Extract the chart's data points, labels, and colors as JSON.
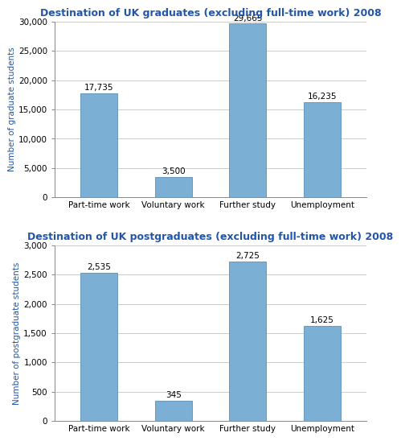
{
  "chart1": {
    "title": "Destination of UK graduates (excluding full-time work) 2008",
    "categories": [
      "Part-time work",
      "Voluntary work",
      "Further study",
      "Unemployment"
    ],
    "values": [
      17735,
      3500,
      29665,
      16235
    ],
    "labels": [
      "17,735",
      "3,500",
      "29,665",
      "16,235"
    ],
    "ylabel": "Number of graduate students",
    "ylim": [
      0,
      30000
    ],
    "yticks": [
      0,
      5000,
      10000,
      15000,
      20000,
      25000,
      30000
    ],
    "yticklabels": [
      "0",
      "5,000",
      "10,000",
      "15,000",
      "20,000",
      "25,000",
      "30,000"
    ]
  },
  "chart2": {
    "title": "Destination of UK postgraduates (excluding full-time work) 2008",
    "categories": [
      "Part-time work",
      "Voluntary work",
      "Further study",
      "Unemployment"
    ],
    "values": [
      2535,
      345,
      2725,
      1625
    ],
    "labels": [
      "2,535",
      "345",
      "2,725",
      "1,625"
    ],
    "ylabel": "Number of postgraduate students",
    "ylim": [
      0,
      3000
    ],
    "yticks": [
      0,
      500,
      1000,
      1500,
      2000,
      2500,
      3000
    ],
    "yticklabels": [
      "0",
      "500",
      "1,000",
      "1,500",
      "2,000",
      "2,500",
      "3,000"
    ]
  },
  "bar_color": "#7bafd4",
  "bar_edge_color": "#5a8fb8",
  "title_color": "#2255aa",
  "ylabel_color": "#2255aa",
  "label_fontsize": 7.5,
  "title_fontsize": 9,
  "ylabel_fontsize": 7.5,
  "tick_fontsize": 7.5,
  "background_color": "#ffffff",
  "plot_bg_color": "#ffffff"
}
